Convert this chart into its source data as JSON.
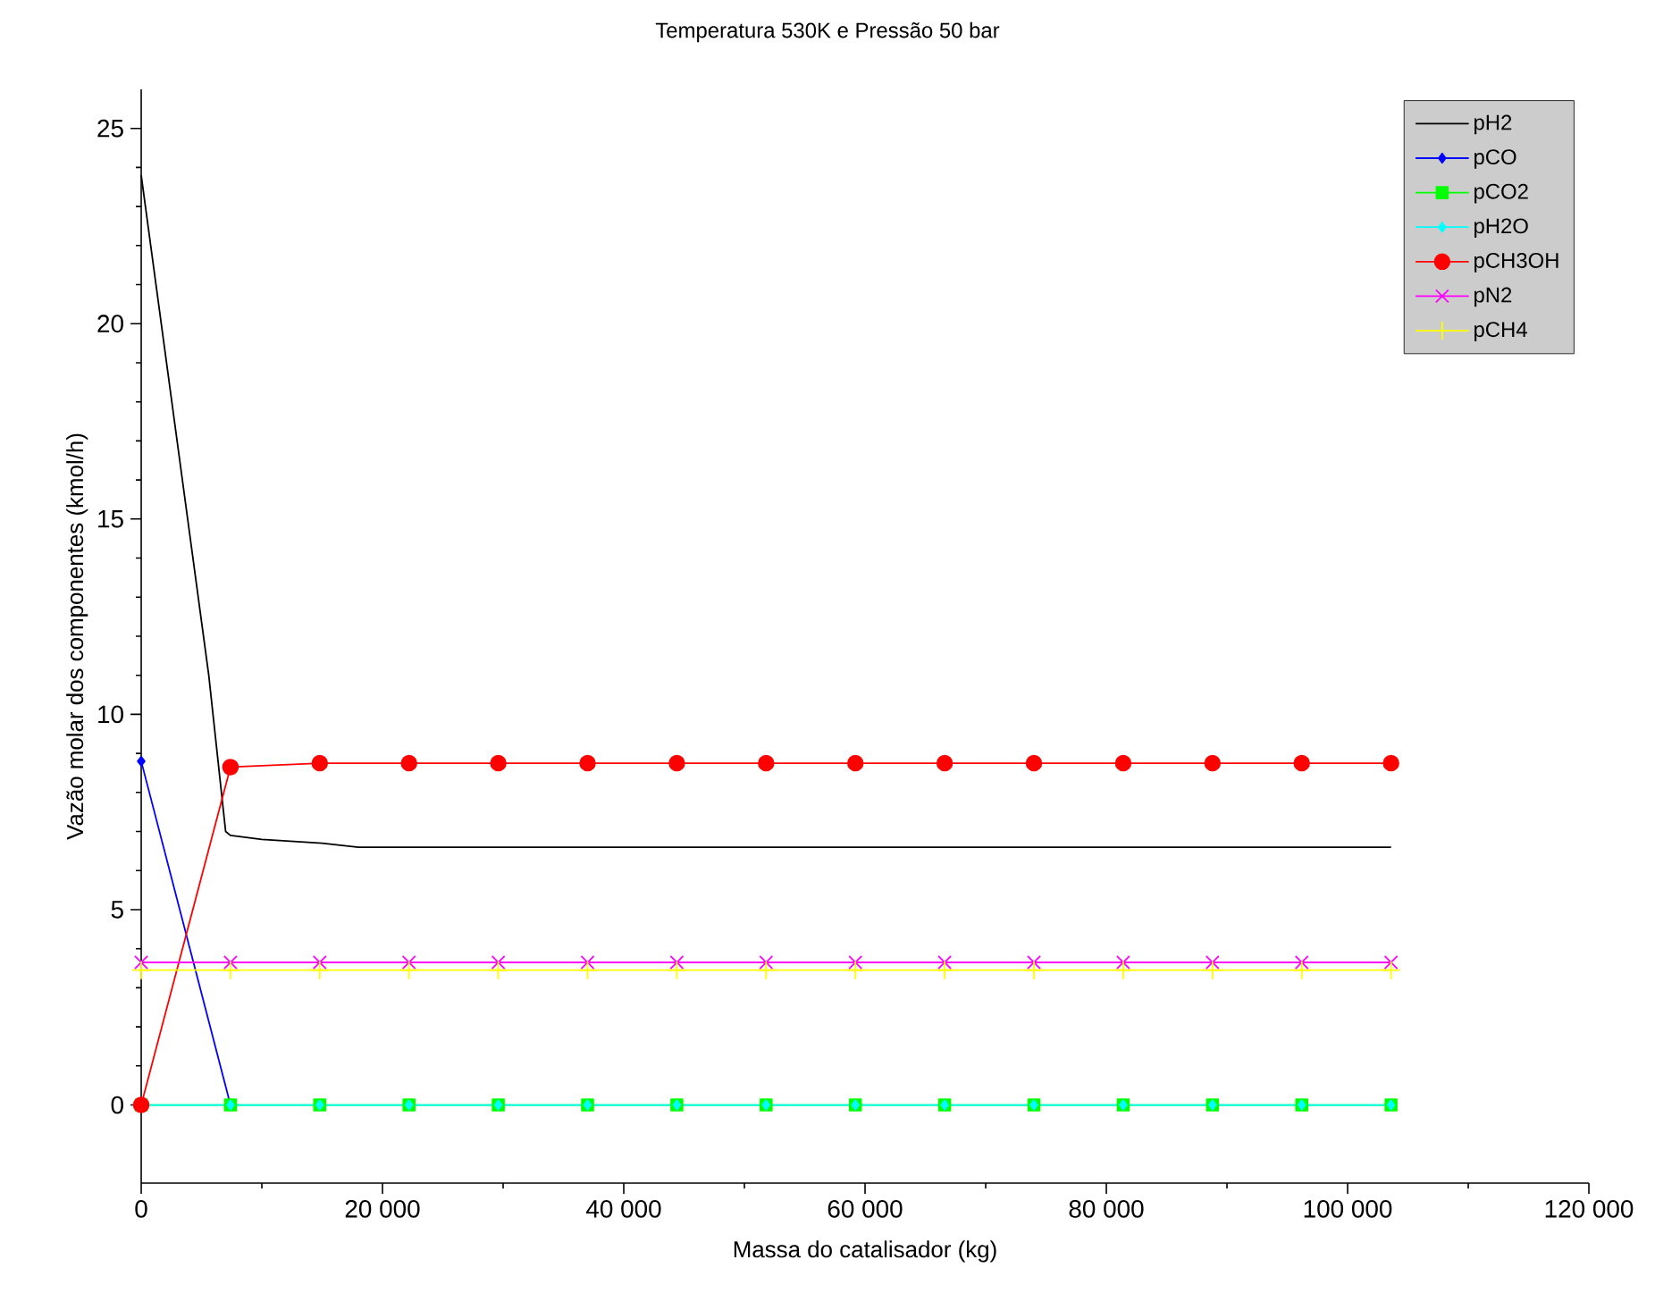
{
  "chart_data": {
    "type": "line",
    "title": "Temperatura 530K e Pressão 50 bar",
    "xlabel": "Massa do catalisador (kg)",
    "ylabel": "Vazão molar dos componentes (kmol/h)",
    "xlim": [
      0,
      120000
    ],
    "ylim": [
      -2,
      26
    ],
    "xticks": [
      0,
      {
        "value": 20000,
        "label": "20 000"
      },
      {
        "value": 40000,
        "label": "40 000"
      },
      {
        "value": 60000,
        "label": "60 000"
      },
      {
        "value": 80000,
        "label": "80 000"
      },
      {
        "value": 100000,
        "label": "100 000"
      },
      {
        "value": 120000,
        "label": "120 000"
      }
    ],
    "yticks": [
      0,
      5,
      10,
      15,
      20,
      25
    ],
    "grid": false,
    "legend": "top right",
    "x": [
      0,
      7400,
      14800,
      22200,
      29600,
      37000,
      44400,
      51800,
      59200,
      66600,
      74000,
      81400,
      88800,
      96200,
      103600
    ],
    "series": [
      {
        "name": "pH2",
        "color": "#000000",
        "marker": "none",
        "x": [
          0,
          5600,
          7000,
          7400,
          10000,
          15000,
          18000,
          103600
        ],
        "values": [
          23.8,
          11.0,
          7.0,
          6.9,
          6.8,
          6.7,
          6.6,
          6.6
        ]
      },
      {
        "name": "pCO",
        "color": "#0000ff",
        "marker": "diamond",
        "values": [
          8.8,
          0,
          null,
          null,
          null,
          null,
          null,
          null,
          null,
          null,
          null,
          null,
          null,
          null,
          null
        ]
      },
      {
        "name": "pCO2",
        "color": "#00ff00",
        "marker": "square",
        "values": [
          0,
          0,
          0,
          0,
          0,
          0,
          0,
          0,
          0,
          0,
          0,
          0,
          0,
          0,
          0
        ]
      },
      {
        "name": "pH2O",
        "color": "#00ffff",
        "marker": "diamond",
        "values": [
          0,
          0,
          0,
          0,
          0,
          0,
          0,
          0,
          0,
          0,
          0,
          0,
          0,
          0,
          0
        ]
      },
      {
        "name": "pCH3OH",
        "color": "#ff0000",
        "marker": "circle",
        "values": [
          0,
          8.65,
          8.75,
          8.75,
          8.75,
          8.75,
          8.75,
          8.75,
          8.75,
          8.75,
          8.75,
          8.75,
          8.75,
          8.75,
          8.75
        ]
      },
      {
        "name": "pN2",
        "color": "#ff00ff",
        "marker": "cross",
        "values": [
          3.65,
          3.65,
          3.65,
          3.65,
          3.65,
          3.65,
          3.65,
          3.65,
          3.65,
          3.65,
          3.65,
          3.65,
          3.65,
          3.65,
          3.65
        ]
      },
      {
        "name": "pCH4",
        "color": "#ffff00",
        "marker": "plus",
        "values": [
          3.45,
          3.45,
          3.45,
          3.45,
          3.45,
          3.45,
          3.45,
          3.45,
          3.45,
          3.45,
          3.45,
          3.45,
          3.45,
          3.45,
          3.45
        ]
      }
    ]
  }
}
